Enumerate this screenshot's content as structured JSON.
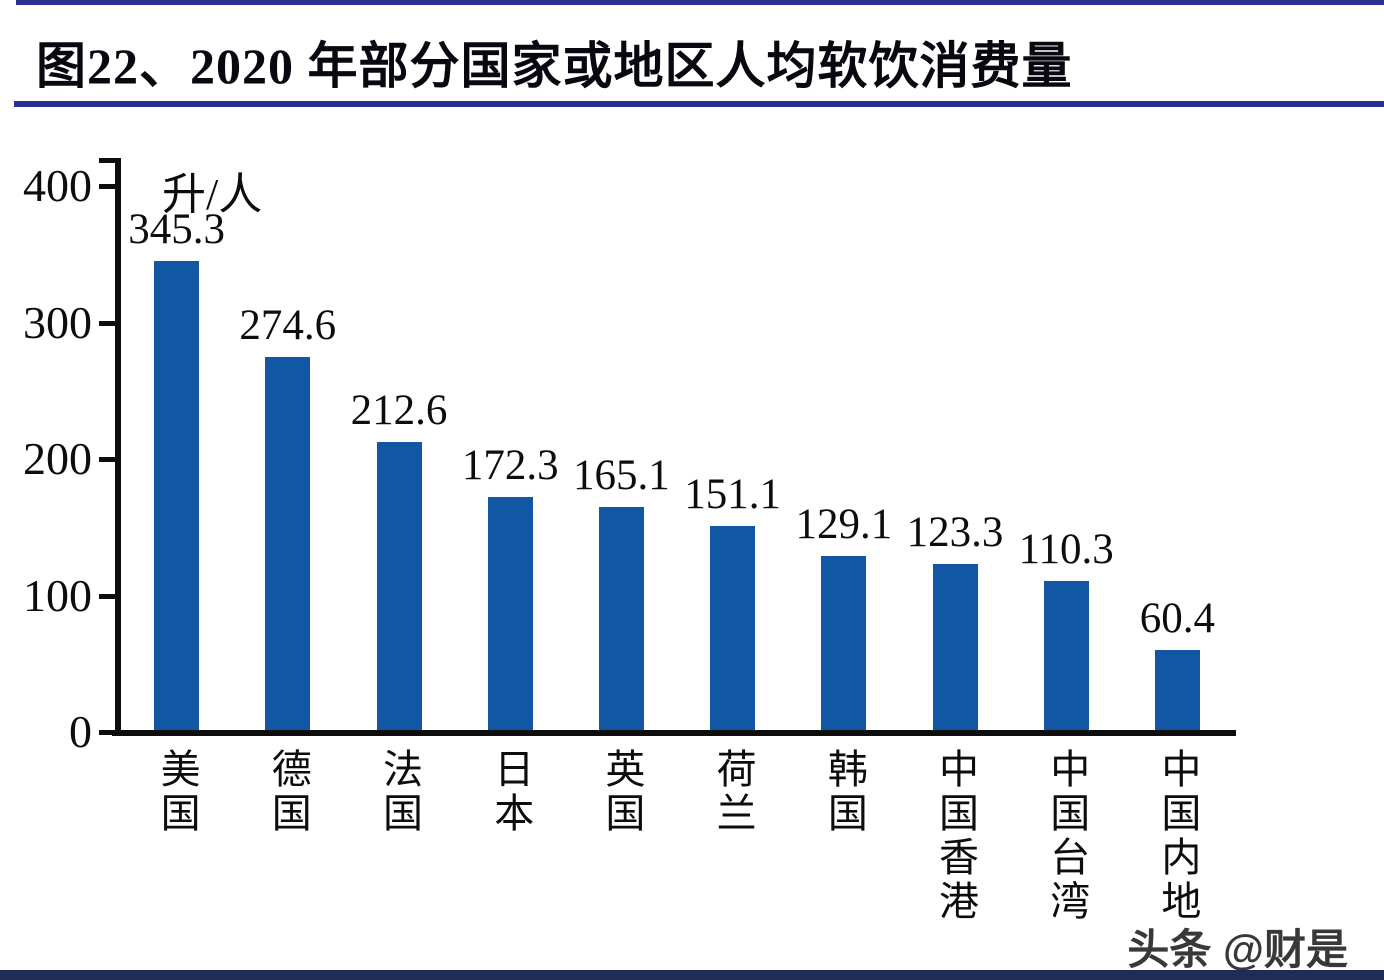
{
  "page": {
    "title": "图22、2020 年部分国家或地区人均软饮消费量",
    "watermark": "头条 @财是"
  },
  "colors": {
    "bar_blue": "#1257a4",
    "rule_navy": "#2b3190",
    "footer_navy": "#1f2c55",
    "axis_black": "#0d0d0d"
  },
  "chart_data": {
    "type": "bar",
    "title": "2020 年部分国家或地区人均软饮消费量",
    "unit_label": "升/人",
    "categories": [
      "美国",
      "德国",
      "法国",
      "日本",
      "英国",
      "荷兰",
      "韩国",
      "中国香港",
      "中国台湾",
      "中国内地"
    ],
    "values": [
      345.3,
      274.6,
      212.6,
      172.3,
      165.1,
      151.1,
      129.1,
      123.3,
      110.3,
      60.4
    ],
    "value_labels": [
      "345.3",
      "274.6",
      "212.6",
      "172.3",
      "165.1",
      "151.1",
      "129.1",
      "123.3",
      "110.3",
      "60.4"
    ],
    "y_ticks": [
      0,
      100,
      200,
      300,
      400
    ],
    "ylim": [
      0,
      400
    ],
    "xlabel": "",
    "ylabel": "升/人",
    "grid": false,
    "legend": false,
    "bar_color": "#1257a4"
  }
}
